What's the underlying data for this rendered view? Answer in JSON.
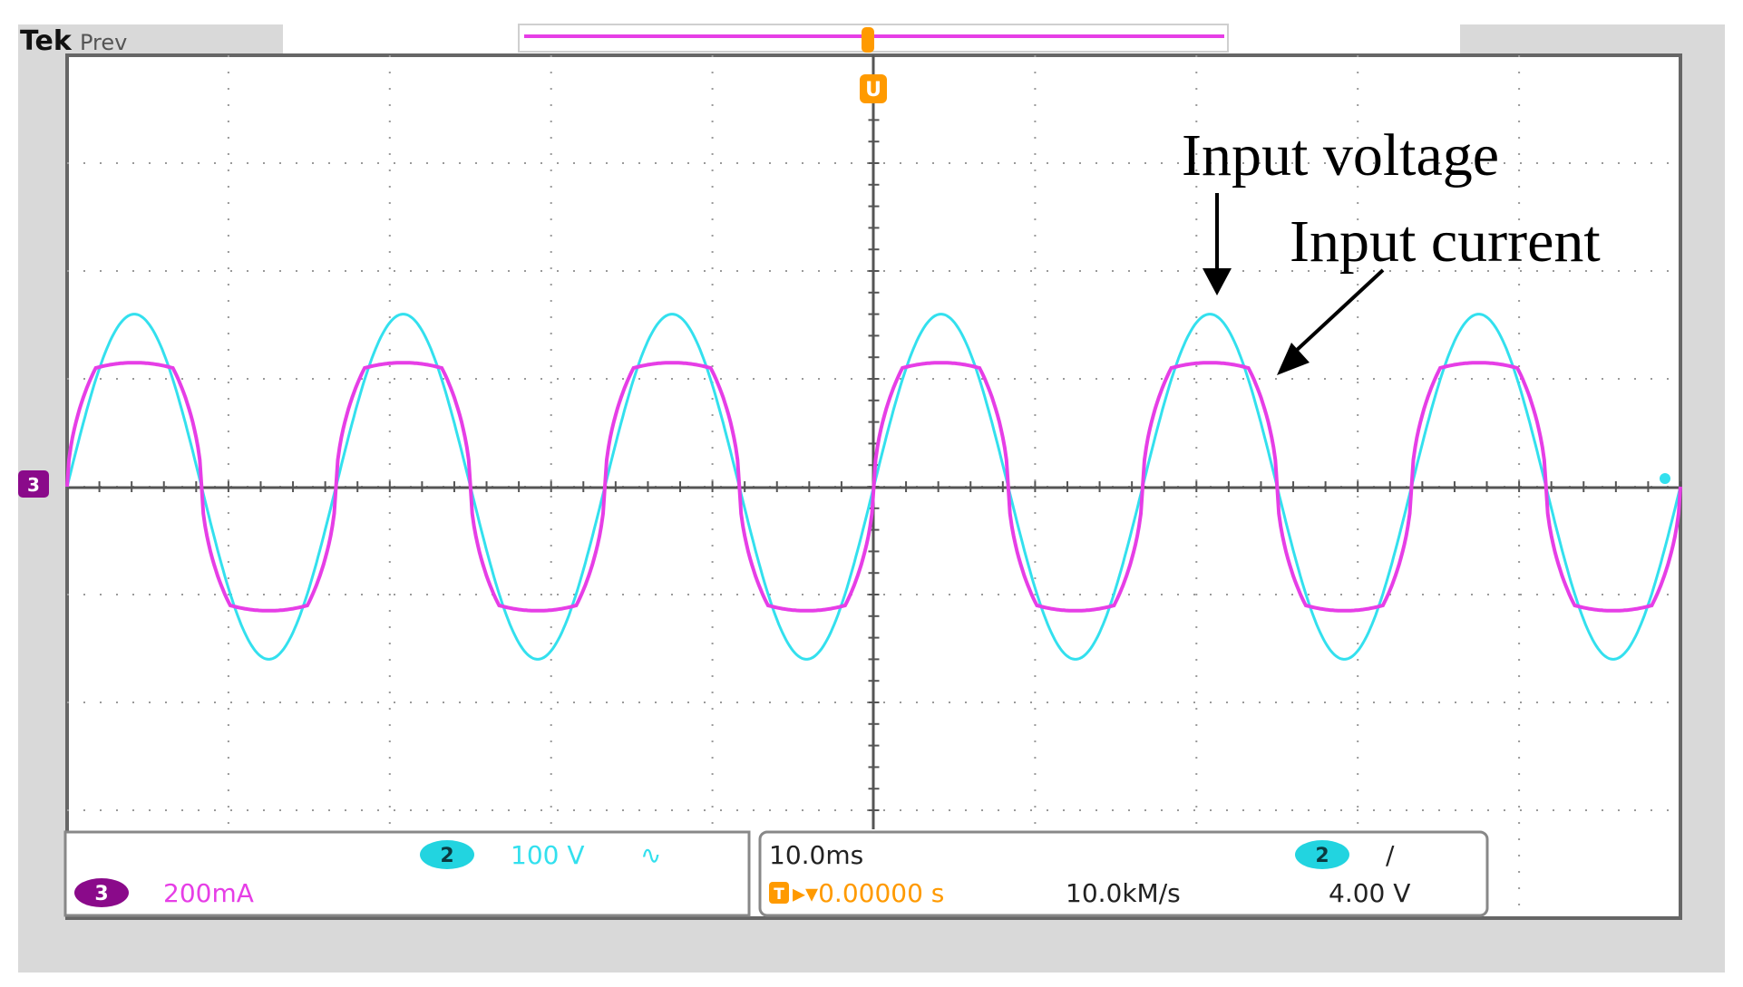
{
  "header": {
    "brand": "Tek",
    "mode": "Prev"
  },
  "annotations": {
    "voltage_label": "Input voltage",
    "current_label": "Input current"
  },
  "markers": {
    "trigger_top": "T",
    "trigger_pos": "U",
    "ch_marker": "3",
    "ch2_end": "2"
  },
  "readout": {
    "ch2_badge": "2",
    "ch2_scale": "100 V",
    "ch2_coupling": "∿",
    "ch3_badge": "3",
    "ch3_scale": "200mA",
    "timebase": "10.0ms",
    "trigger_icon": "T",
    "trigger_delay": "▸▾0.00000 s",
    "sample_rate": "10.0kM/s",
    "trig_source_badge": "2",
    "trig_slope": "/",
    "trig_level": "4.00 V"
  },
  "colors": {
    "voltage": "#33e0ee",
    "current": "#e63ee6",
    "ch3_badge": "#8a0a8a",
    "ch2_badge": "#22d4e0",
    "trigger": "#ff9a00",
    "grid": "#9a9a9a",
    "frame": "#666666",
    "panel_grey": "#d9d9d9"
  },
  "chart_data": {
    "type": "line",
    "title": "",
    "xlabel": "",
    "ylabel": "",
    "x_divisions": 10,
    "y_divisions": 8,
    "xlim": [
      -50,
      50
    ],
    "ylim": [
      -4,
      4
    ],
    "timebase_ms_per_div": 10,
    "grid": true,
    "series": [
      {
        "name": "Input voltage",
        "channel": 2,
        "frequency_hz": 60,
        "amplitude_div": 1.6,
        "waveform": "sine"
      },
      {
        "name": "Input current",
        "channel": 3,
        "frequency_hz": 60,
        "amplitude_div": 1.15,
        "waveform": "clipped-sine"
      }
    ]
  }
}
